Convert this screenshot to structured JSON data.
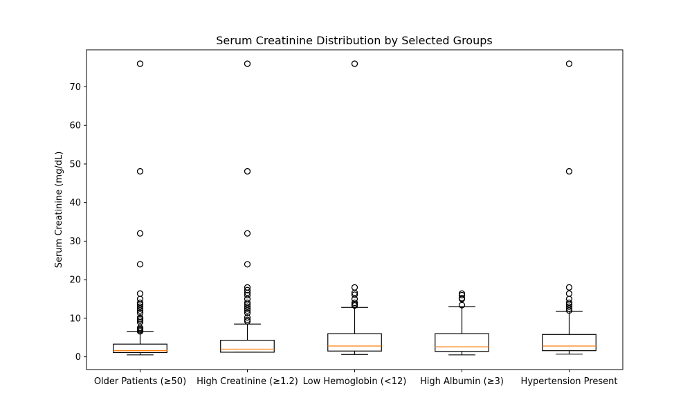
{
  "chart_data": {
    "type": "box",
    "title": "Serum Creatinine Distribution by Selected Groups",
    "xlabel": "",
    "ylabel": "Serum Creatinine (mg/dL)",
    "ylim": [
      -3.3,
      79.6
    ],
    "yticks": [
      0,
      10,
      20,
      30,
      40,
      50,
      60,
      70
    ],
    "grid": false,
    "categories": [
      "Older Patients (≥50)",
      "High Creatinine (≥1.2)",
      "Low Hemoglobin (<12)",
      "High Albumin (≥3)",
      "Hypertension Present"
    ],
    "series": [
      {
        "whisker_low": 0.5,
        "q1": 1.1,
        "median": 1.6,
        "q3": 3.3,
        "whisker_high": 6.5,
        "fliers": [
          6.6,
          6.9,
          7.2,
          7.5,
          9.0,
          9.4,
          9.8,
          10.2,
          11.4,
          12.0,
          12.5,
          13.0,
          13.5,
          14.0,
          15.0,
          16.4,
          24.0,
          32.0,
          48.1,
          76.0
        ]
      },
      {
        "whisker_low": 1.2,
        "q1": 1.2,
        "median": 2.0,
        "q3": 4.3,
        "whisker_high": 8.5,
        "fliers": [
          9.2,
          9.6,
          10.2,
          11.4,
          12.0,
          12.5,
          13.0,
          13.5,
          14.0,
          15.0,
          16.0,
          16.6,
          17.3,
          18.0,
          24.0,
          32.0,
          48.1,
          76.0
        ]
      },
      {
        "whisker_low": 0.6,
        "q1": 1.5,
        "median": 2.8,
        "q3": 6.0,
        "whisker_high": 12.8,
        "fliers": [
          13.3,
          13.6,
          14.0,
          15.0,
          16.1,
          16.6,
          18.0,
          76.0
        ]
      },
      {
        "whisker_low": 0.5,
        "q1": 1.4,
        "median": 2.6,
        "q3": 6.0,
        "whisker_high": 13.0,
        "fliers": [
          13.4,
          15.0,
          15.2,
          16.0,
          16.4
        ]
      },
      {
        "whisker_low": 0.7,
        "q1": 1.6,
        "median": 2.8,
        "q3": 5.8,
        "whisker_high": 11.8,
        "fliers": [
          12.0,
          12.5,
          13.0,
          13.5,
          14.0,
          15.0,
          16.4,
          18.0,
          48.1,
          76.0
        ]
      }
    ],
    "colors": {
      "median": "#ff7f0e",
      "box": "#000000",
      "flier": "#000000"
    }
  }
}
